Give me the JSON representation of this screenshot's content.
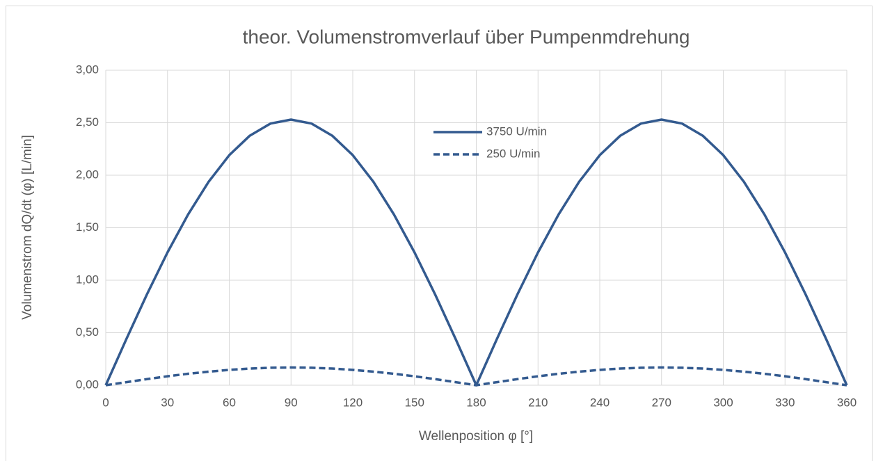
{
  "chart_data": {
    "type": "line",
    "title": "theor. Volumenstromverlauf über Pumpenmdrehung",
    "x_label": "Wellenposition φ [°]",
    "y_label": "Volumenstrom dQ/dt (φ) [L/min]",
    "x": [
      0,
      10,
      20,
      30,
      40,
      50,
      60,
      70,
      80,
      90,
      100,
      110,
      120,
      130,
      140,
      150,
      160,
      170,
      180,
      190,
      200,
      210,
      220,
      230,
      240,
      250,
      260,
      270,
      280,
      290,
      300,
      310,
      320,
      330,
      340,
      350,
      360
    ],
    "series": [
      {
        "name": "3750 U/min",
        "color": "#335a8f",
        "dash": false,
        "values": [
          0,
          0.439,
          0.865,
          1.265,
          1.626,
          1.938,
          2.191,
          2.377,
          2.492,
          2.53,
          2.492,
          2.377,
          2.191,
          1.938,
          1.626,
          1.265,
          0.865,
          0.439,
          0,
          0.439,
          0.865,
          1.265,
          1.626,
          1.938,
          2.191,
          2.377,
          2.492,
          2.53,
          2.492,
          2.377,
          2.191,
          1.938,
          1.626,
          1.265,
          0.865,
          0.439,
          0
        ]
      },
      {
        "name": "250 U/min",
        "color": "#335a8f",
        "dash": true,
        "values": [
          0,
          0.029,
          0.058,
          0.085,
          0.109,
          0.129,
          0.146,
          0.159,
          0.166,
          0.169,
          0.166,
          0.159,
          0.146,
          0.129,
          0.109,
          0.085,
          0.058,
          0.029,
          0,
          0.029,
          0.058,
          0.085,
          0.109,
          0.129,
          0.146,
          0.159,
          0.166,
          0.169,
          0.166,
          0.159,
          0.146,
          0.129,
          0.109,
          0.085,
          0.058,
          0.029,
          0
        ]
      }
    ],
    "xlim": [
      0,
      360
    ],
    "xticks": [
      0,
      30,
      60,
      90,
      120,
      150,
      180,
      210,
      240,
      270,
      300,
      330,
      360
    ],
    "ylim": [
      0,
      3
    ],
    "yticks": [
      {
        "value": 0,
        "label": "0,00"
      },
      {
        "value": 0.5,
        "label": "0,50"
      },
      {
        "value": 1,
        "label": "1,00"
      },
      {
        "value": 1.5,
        "label": "1,50"
      },
      {
        "value": 2,
        "label": "2,00"
      },
      {
        "value": 2.5,
        "label": "2,50"
      },
      {
        "value": 3,
        "label": "3,00"
      }
    ],
    "grid": true,
    "legend": "top"
  }
}
